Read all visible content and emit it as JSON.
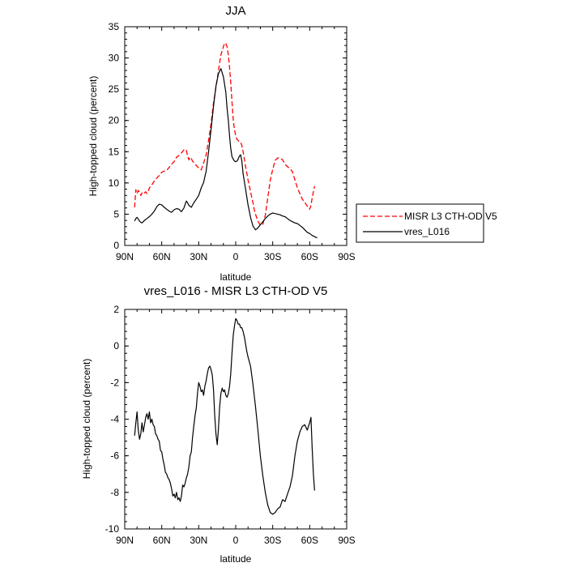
{
  "chart_data": [
    {
      "type": "line",
      "title": "JJA",
      "xlabel": "latitude",
      "ylabel": "High-topped cloud (percent)",
      "xlim": [
        90,
        -90
      ],
      "ylim": [
        0,
        35
      ],
      "x_ticks": [
        {
          "v": 90,
          "label": "90N"
        },
        {
          "v": 60,
          "label": "60N"
        },
        {
          "v": 30,
          "label": "30N"
        },
        {
          "v": 0,
          "label": "0"
        },
        {
          "v": -30,
          "label": "30S"
        },
        {
          "v": -60,
          "label": "60S"
        },
        {
          "v": -90,
          "label": "90S"
        }
      ],
      "y_ticks": [
        {
          "v": 0,
          "label": "0"
        },
        {
          "v": 5,
          "label": "5"
        },
        {
          "v": 10,
          "label": "10"
        },
        {
          "v": 15,
          "label": "15"
        },
        {
          "v": 20,
          "label": "20"
        },
        {
          "v": 25,
          "label": "25"
        },
        {
          "v": 30,
          "label": "30"
        },
        {
          "v": 35,
          "label": "35"
        }
      ],
      "legend_position": "outside-right",
      "series": [
        {
          "name": "MISR L3 CTH-OD V5",
          "style": "dashed",
          "color": "#ff0000",
          "x": [
            82,
            81,
            80,
            79,
            78,
            77,
            76,
            75,
            73,
            72,
            71,
            70,
            68,
            66,
            64,
            62,
            60,
            58,
            56,
            54,
            52,
            50,
            48,
            46,
            44,
            42,
            41,
            40,
            39,
            38,
            37,
            36,
            35,
            34,
            32,
            30,
            28,
            26,
            24,
            22,
            20,
            18,
            16,
            14,
            12,
            10,
            9,
            8,
            7,
            6,
            5,
            4,
            3,
            2,
            1,
            0,
            -1,
            -2,
            -3,
            -4,
            -5,
            -6,
            -7,
            -8,
            -9,
            -10,
            -12,
            -14,
            -15,
            -16,
            -18,
            -20,
            -22,
            -24,
            -26,
            -28,
            -30,
            -32,
            -34,
            -36,
            -38,
            -40,
            -42,
            -44,
            -46,
            -48,
            -50,
            -52,
            -54,
            -56,
            -58,
            -60,
            -61,
            -62,
            -63,
            -64
          ],
          "y": [
            6.1,
            8.9,
            8.3,
            8.8,
            8.5,
            8.0,
            8.4,
            8.2,
            8.6,
            8.3,
            8.6,
            9.2,
            9.7,
            10.3,
            10.8,
            11.2,
            11.7,
            11.9,
            12.0,
            12.5,
            13.0,
            13.4,
            14.1,
            14.4,
            14.8,
            15.3,
            15.4,
            15.2,
            14.3,
            13.7,
            14.1,
            13.9,
            13.5,
            13.3,
            12.8,
            12.4,
            12.1,
            13.2,
            14.5,
            16.8,
            19.5,
            22.8,
            25.3,
            28.0,
            30.5,
            31.8,
            32.4,
            32.3,
            31.8,
            30.5,
            28.5,
            26.0,
            23.0,
            20.0,
            18.5,
            17.6,
            17.0,
            16.8,
            16.6,
            16.5,
            16.0,
            15.0,
            13.8,
            12.6,
            11.6,
            10.5,
            8.6,
            6.8,
            5.8,
            5.0,
            3.9,
            3.2,
            3.4,
            4.8,
            7.6,
            10.4,
            12.2,
            13.6,
            14.0,
            14.0,
            13.7,
            13.0,
            12.6,
            12.3,
            11.8,
            10.5,
            9.2,
            8.3,
            7.4,
            6.9,
            6.3,
            5.8,
            6.4,
            7.6,
            8.6,
            9.5
          ]
        },
        {
          "name": "vres_L016",
          "style": "solid",
          "color": "#000000",
          "x": [
            82,
            81,
            80,
            79,
            78,
            77,
            76,
            74,
            72,
            70,
            68,
            66,
            64,
            62,
            60,
            58,
            56,
            54,
            52,
            50,
            48,
            46,
            44,
            42,
            41,
            40,
            39,
            38,
            36,
            34,
            32,
            30,
            28,
            26,
            24,
            22,
            20,
            18,
            16,
            14,
            12,
            10,
            8,
            7,
            6,
            5,
            4,
            3,
            2,
            1,
            0,
            -1,
            -2,
            -3,
            -4,
            -5,
            -6,
            -8,
            -10,
            -12,
            -14,
            -16,
            -18,
            -20,
            -22,
            -24,
            -26,
            -28,
            -30,
            -32,
            -34,
            -36,
            -38,
            -40,
            -42,
            -44,
            -46,
            -48,
            -50,
            -52,
            -54,
            -56,
            -58,
            -60,
            -62,
            -64,
            -66
          ],
          "y": [
            3.9,
            4.3,
            4.5,
            4.2,
            3.9,
            3.7,
            3.6,
            4.0,
            4.3,
            4.6,
            5.0,
            5.5,
            6.2,
            6.6,
            6.5,
            6.1,
            5.8,
            5.5,
            5.3,
            5.7,
            5.9,
            5.8,
            5.4,
            6.0,
            6.6,
            7.1,
            6.8,
            6.4,
            6.1,
            6.8,
            7.4,
            8.0,
            9.2,
            10.1,
            11.9,
            15.0,
            18.6,
            22.3,
            25.5,
            27.5,
            28.3,
            27.0,
            24.5,
            22.0,
            20.0,
            17.5,
            15.5,
            14.2,
            13.8,
            13.5,
            13.4,
            13.5,
            13.8,
            14.3,
            14.5,
            13.5,
            11.5,
            9.0,
            6.5,
            4.5,
            3.1,
            2.5,
            2.8,
            3.3,
            3.8,
            4.3,
            4.7,
            5.0,
            5.2,
            5.1,
            5.0,
            4.9,
            4.7,
            4.6,
            4.3,
            4.0,
            3.8,
            3.6,
            3.5,
            3.2,
            2.9,
            2.5,
            2.1,
            1.9,
            1.6,
            1.4,
            1.2
          ]
        }
      ]
    },
    {
      "type": "line",
      "title": "vres_L016 - MISR L3 CTH-OD V5",
      "xlabel": "latitude",
      "ylabel": "High-topped cloud (percent)",
      "xlim": [
        90,
        -90
      ],
      "ylim": [
        -10,
        2
      ],
      "x_ticks": [
        {
          "v": 90,
          "label": "90N"
        },
        {
          "v": 60,
          "label": "60N"
        },
        {
          "v": 30,
          "label": "30N"
        },
        {
          "v": 0,
          "label": "0"
        },
        {
          "v": -30,
          "label": "30S"
        },
        {
          "v": -60,
          "label": "60S"
        },
        {
          "v": -90,
          "label": "90S"
        }
      ],
      "y_ticks": [
        {
          "v": -10,
          "label": "-10"
        },
        {
          "v": -8,
          "label": "-8"
        },
        {
          "v": -6,
          "label": "-6"
        },
        {
          "v": -4,
          "label": "-4"
        },
        {
          "v": -2,
          "label": "-2"
        },
        {
          "v": 0,
          "label": "0"
        },
        {
          "v": 2,
          "label": "2"
        }
      ],
      "series": [
        {
          "name": "vres_L016 - MISR L3 CTH-OD V5",
          "style": "solid",
          "color": "#000000",
          "x": [
            82,
            81,
            80,
            79,
            78,
            77,
            76,
            75,
            74,
            73,
            72,
            71,
            70,
            69,
            68,
            67,
            66,
            65,
            64,
            63,
            62,
            61,
            60,
            59,
            58,
            57,
            56,
            55,
            54,
            53,
            52,
            51,
            50,
            49,
            48,
            47,
            46,
            45,
            44,
            43,
            42,
            41,
            40,
            39,
            38,
            37,
            36,
            35,
            34,
            33,
            32,
            31,
            30,
            29,
            28,
            27,
            26,
            25,
            24,
            23,
            22,
            21,
            20,
            19,
            18,
            17,
            16,
            15,
            14,
            13,
            12,
            11,
            10,
            9,
            8,
            7,
            6,
            5,
            4,
            3,
            2,
            1,
            0,
            -1,
            -2,
            -3,
            -4,
            -5,
            -6,
            -7,
            -8,
            -9,
            -10,
            -12,
            -14,
            -16,
            -18,
            -20,
            -22,
            -24,
            -26,
            -28,
            -30,
            -32,
            -34,
            -36,
            -38,
            -40,
            -42,
            -44,
            -46,
            -48,
            -50,
            -52,
            -54,
            -56,
            -58,
            -60,
            -61,
            -62,
            -63,
            -64
          ],
          "y": [
            -4.9,
            -4.2,
            -3.6,
            -4.6,
            -5.1,
            -4.8,
            -4.2,
            -4.7,
            -4.3,
            -3.9,
            -3.7,
            -4.0,
            -3.6,
            -4.2,
            -4.0,
            -4.3,
            -4.4,
            -4.8,
            -4.9,
            -5.1,
            -5.2,
            -5.7,
            -5.8,
            -6.2,
            -6.5,
            -6.9,
            -7.0,
            -7.2,
            -7.3,
            -7.5,
            -7.8,
            -8.2,
            -8.1,
            -8.3,
            -8.0,
            -8.4,
            -8.3,
            -8.5,
            -8.2,
            -7.6,
            -7.7,
            -7.5,
            -7.2,
            -7.0,
            -6.6,
            -6.0,
            -5.8,
            -5.0,
            -4.4,
            -3.8,
            -3.4,
            -2.6,
            -2.0,
            -2.2,
            -2.5,
            -2.4,
            -2.7,
            -2.2,
            -1.9,
            -1.5,
            -1.2,
            -1.1,
            -1.3,
            -1.6,
            -2.4,
            -3.8,
            -4.8,
            -5.4,
            -4.5,
            -3.3,
            -2.6,
            -2.3,
            -2.5,
            -2.4,
            -2.7,
            -2.8,
            -2.6,
            -2.2,
            -1.5,
            -0.4,
            0.6,
            1.1,
            1.5,
            1.4,
            1.2,
            1.2,
            1.0,
            1.0,
            0.8,
            0.5,
            0.1,
            -0.3,
            -0.6,
            -1.1,
            -2.1,
            -3.3,
            -4.6,
            -6.0,
            -7.1,
            -8.0,
            -8.7,
            -9.1,
            -9.2,
            -9.1,
            -8.9,
            -8.8,
            -8.4,
            -8.5,
            -8.1,
            -7.7,
            -7.1,
            -6.0,
            -5.2,
            -4.7,
            -4.4,
            -4.3,
            -4.6,
            -4.2,
            -3.9,
            -5.6,
            -7.0,
            -7.9
          ]
        }
      ]
    }
  ]
}
